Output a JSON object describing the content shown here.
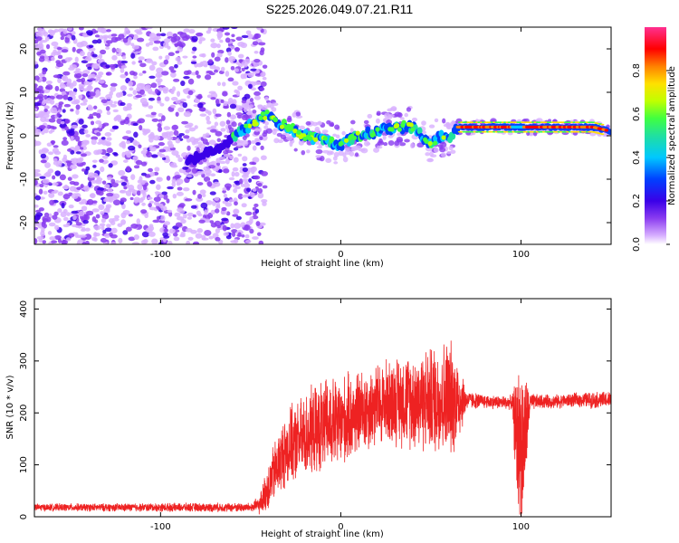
{
  "title": "S225.2026.049.07.21.R11",
  "colors": {
    "snr_line": "#ee2222",
    "colormap": [
      "#d8b0ff",
      "#8a3cf0",
      "#3a00e8",
      "#0040ff",
      "#00c8ff",
      "#20e0a0",
      "#40ff40",
      "#c0ff00",
      "#ffe000",
      "#ff8000",
      "#ff0000",
      "#ff3090"
    ]
  },
  "chart_data": [
    {
      "type": "scatter",
      "name": "spectrogram",
      "xlabel": "Height of straight line (km)",
      "ylabel": "Frequency (Hz)",
      "xlim": [
        -170,
        150
      ],
      "ylim": [
        -25,
        25
      ],
      "xticks": [
        -100,
        0,
        100
      ],
      "yticks": [
        -20,
        -10,
        0,
        10,
        20
      ],
      "grid": false,
      "ridge": {
        "x": [
          -85,
          -75,
          -65,
          -55,
          -45,
          -40,
          -35,
          -30,
          -20,
          -10,
          0,
          10,
          20,
          30,
          40,
          45,
          50,
          55,
          60,
          65,
          80,
          95,
          100,
          110,
          120,
          130,
          140,
          150
        ],
        "y": [
          -6,
          -4,
          -2,
          1,
          4,
          5,
          3,
          2,
          0,
          -1,
          -2,
          0,
          1,
          2,
          2,
          0,
          -2,
          0,
          -1,
          2,
          2,
          2,
          2,
          2,
          2,
          2,
          2,
          1
        ]
      },
      "colorbar": {
        "label": "Normalized spectral amplitude",
        "range": [
          0,
          1
        ],
        "ticks": [
          "0.0",
          "0.2",
          "0.4",
          "0.6",
          "0.8"
        ]
      }
    },
    {
      "type": "line",
      "name": "snr",
      "xlabel": "Height of straight line (km)",
      "ylabel": "SNR (10 * v/v)",
      "xlim": [
        -170,
        150
      ],
      "ylim": [
        0,
        420
      ],
      "xticks": [
        -100,
        0,
        100
      ],
      "yticks": [
        0,
        100,
        200,
        300,
        400
      ],
      "grid": false,
      "envelope": {
        "x": [
          -170,
          -50,
          -45,
          -40,
          -35,
          -30,
          -20,
          -10,
          0,
          10,
          20,
          30,
          40,
          50,
          60,
          65,
          70,
          80,
          90,
          95,
          98,
          100,
          102,
          105,
          110,
          120,
          130,
          140,
          150
        ],
        "mean": [
          18,
          18,
          22,
          60,
          100,
          130,
          155,
          175,
          180,
          200,
          215,
          225,
          225,
          225,
          230,
          225,
          225,
          222,
          220,
          220,
          150,
          120,
          150,
          220,
          222,
          222,
          225,
          225,
          225
        ],
        "amp": [
          8,
          10,
          20,
          55,
          70,
          80,
          90,
          100,
          100,
          90,
          90,
          95,
          105,
          115,
          130,
          100,
          20,
          15,
          15,
          15,
          150,
          200,
          150,
          20,
          15,
          15,
          15,
          18,
          18
        ]
      }
    }
  ]
}
